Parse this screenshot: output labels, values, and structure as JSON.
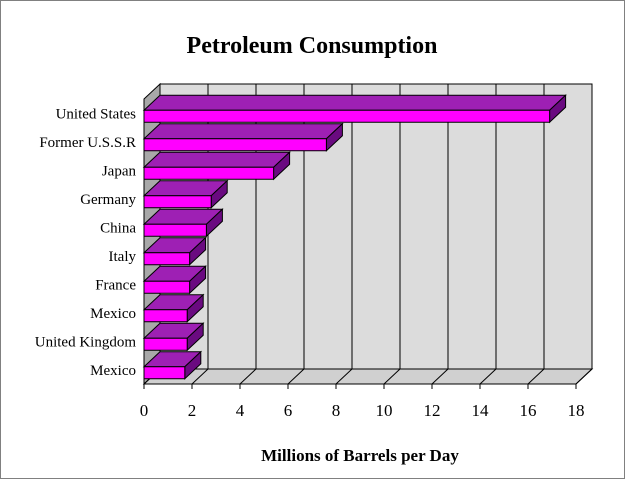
{
  "chart_data": {
    "type": "bar",
    "orientation": "horizontal",
    "three_d": true,
    "title": "Petroleum Consumption",
    "xlabel": "Millions of Barrels per Day",
    "ylabel": "",
    "xlim": [
      0,
      18
    ],
    "xticks": [
      "0",
      "2",
      "4",
      "6",
      "8",
      "10",
      "12",
      "14",
      "16",
      "18"
    ],
    "categories": [
      "United States",
      "Former U.S.S.R",
      "Japan",
      "Germany",
      "China",
      "Italy",
      "France",
      "Mexico",
      "United Kingdom",
      "Mexico"
    ],
    "values": [
      16.9,
      7.6,
      5.4,
      2.8,
      2.6,
      1.9,
      1.9,
      1.8,
      1.8,
      1.7
    ],
    "grid": true,
    "legend": "none",
    "colors": {
      "bar_front": "#ff00ff",
      "bar_top": "#9e20b4",
      "bar_side": "#6a0a80",
      "wall": "#dcdcdc",
      "floor": "#d0d0d0",
      "grid": "#000000"
    }
  }
}
